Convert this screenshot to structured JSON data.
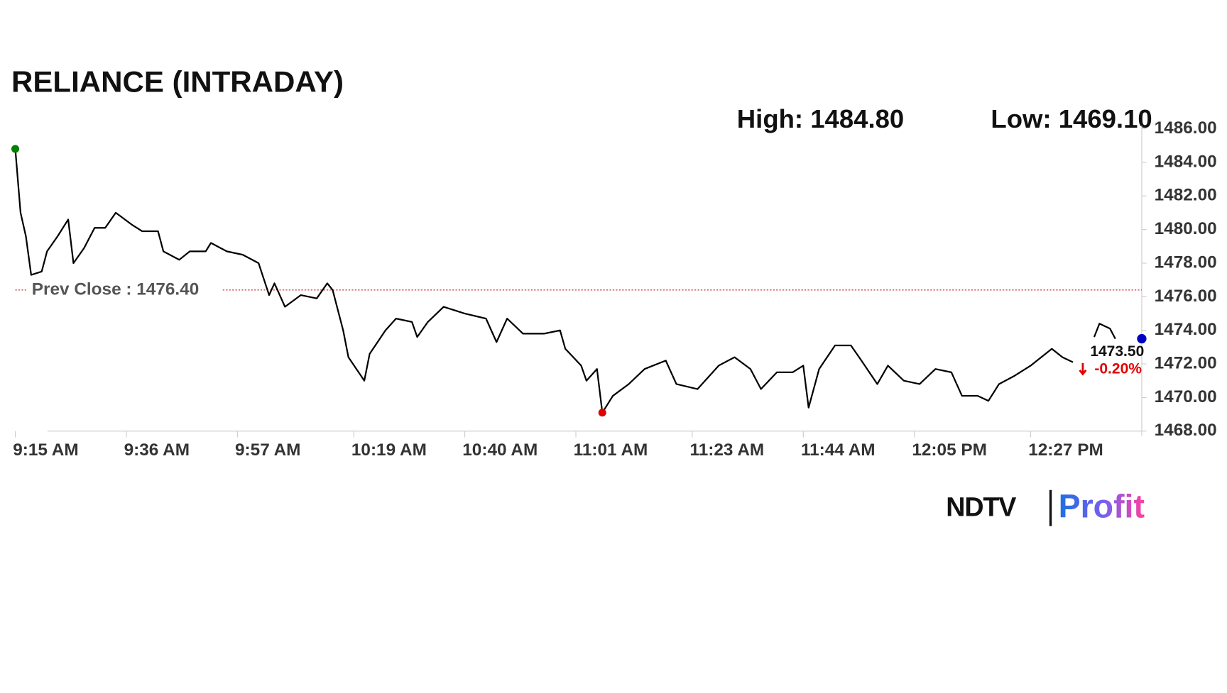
{
  "chart_data": {
    "type": "line",
    "title": "RELIANCE (INTRADAY)",
    "color": "#000000",
    "x": [
      "9:15 AM",
      "9:16 AM",
      "9:17 AM",
      "9:18 AM",
      "9:20 AM",
      "9:21 AM",
      "9:23 AM",
      "9:25 AM",
      "9:26 AM",
      "9:28 AM",
      "9:30 AM",
      "9:32 AM",
      "9:34 AM",
      "9:37 AM",
      "9:39 AM",
      "9:42 AM",
      "9:43 AM",
      "9:46 AM",
      "9:48 AM",
      "9:51 AM",
      "9:52 AM",
      "9:55 AM",
      "9:58 AM",
      "10:01 AM",
      "10:03 AM",
      "10:04 AM",
      "10:06 AM",
      "10:09 AM",
      "10:12 AM",
      "10:14 AM",
      "10:15 AM",
      "10:17 AM",
      "10:18 AM",
      "10:21 AM",
      "10:22 AM",
      "10:25 AM",
      "10:27 AM",
      "10:30 AM",
      "10:31 AM",
      "10:33 AM",
      "10:36 AM",
      "10:40 AM",
      "10:44 AM",
      "10:46 AM",
      "10:48 AM",
      "10:51 AM",
      "10:55 AM",
      "10:58 AM",
      "10:59 AM",
      "11:02 AM",
      "11:03 AM",
      "11:05 AM",
      "11:06 AM",
      "11:08 AM",
      "11:11 AM",
      "11:14 AM",
      "11:18 AM",
      "11:20 AM",
      "11:24 AM",
      "11:28 AM",
      "11:31 AM",
      "11:34 AM",
      "11:36 AM",
      "11:39 AM",
      "11:42 AM",
      "11:44 AM",
      "11:45 AM",
      "11:47 AM",
      "11:50 AM",
      "11:53 AM",
      "11:55 AM",
      "11:58 AM",
      "12:00 PM",
      "12:03 PM",
      "12:06 PM",
      "12:09 PM",
      "12:12 PM",
      "12:14 PM",
      "12:17 PM",
      "12:19 PM",
      "12:21 PM",
      "12:24 PM",
      "12:27 PM",
      "12:31 PM",
      "12:33 PM",
      "12:35 PM",
      "12:38 PM",
      "12:39 PM",
      "12:40 PM",
      "12:42 PM",
      "12:43 PM",
      "12:45 PM",
      "12:48 PM"
    ],
    "values": [
      1484.8,
      1481.0,
      1479.6,
      1477.3,
      1477.5,
      1478.7,
      1479.6,
      1480.6,
      1478.0,
      1478.9,
      1480.1,
      1480.1,
      1481.0,
      1480.3,
      1479.9,
      1479.9,
      1478.7,
      1478.2,
      1478.7,
      1478.7,
      1479.2,
      1478.7,
      1478.5,
      1478.0,
      1476.1,
      1476.8,
      1475.4,
      1476.1,
      1475.9,
      1476.8,
      1476.4,
      1474.0,
      1472.4,
      1471.0,
      1472.6,
      1474.0,
      1474.7,
      1474.5,
      1473.6,
      1474.5,
      1475.4,
      1475.0,
      1474.7,
      1473.3,
      1474.7,
      1473.8,
      1473.8,
      1474.0,
      1472.9,
      1471.9,
      1471.0,
      1471.7,
      1469.1,
      1470.1,
      1470.8,
      1471.7,
      1472.2,
      1470.8,
      1470.5,
      1471.9,
      1472.4,
      1471.7,
      1470.5,
      1471.5,
      1471.5,
      1471.9,
      1469.4,
      1471.7,
      1473.1,
      1473.1,
      1472.2,
      1470.8,
      1471.9,
      1471.0,
      1470.8,
      1471.7,
      1471.5,
      1470.1,
      1470.1,
      1469.8,
      1470.8,
      1471.3,
      1471.9,
      1472.9,
      1472.4,
      1472.1,
      null,
      1473.6,
      1474.4,
      1474.1,
      1473.5,
      null,
      1473.5
    ],
    "xlim": [
      "9:15 AM",
      "12:48 PM"
    ],
    "xticks": [
      "9:15 AM",
      "9:36 AM",
      "9:57 AM",
      "10:19 AM",
      "10:40 AM",
      "11:01 AM",
      "11:23 AM",
      "11:44 AM",
      "12:05 PM",
      "12:27 PM"
    ],
    "ylim": [
      1468,
      1486
    ],
    "yticks": [
      {
        "value": 1468,
        "label": "1468.00"
      },
      {
        "value": 1470,
        "label": "1470.00"
      },
      {
        "value": 1472,
        "label": "1472.00"
      },
      {
        "value": 1474,
        "label": "1474.00"
      },
      {
        "value": 1476,
        "label": "1476.00"
      },
      {
        "value": 1478,
        "label": "1478.00"
      },
      {
        "value": 1480,
        "label": "1480.00"
      },
      {
        "value": 1482,
        "label": "1482.00"
      },
      {
        "value": 1484,
        "label": "1484.00"
      },
      {
        "value": 1486,
        "label": "1486.00"
      }
    ],
    "high": {
      "value": 1484.8,
      "label": "High: 1484.80",
      "color": "#008000"
    },
    "low": {
      "value": 1469.1,
      "label": "Low: 1469.10",
      "color": "#e00000"
    },
    "prev_close": {
      "value": 1476.4,
      "label": "Prev Close : 1476.40",
      "color": "#c00000"
    },
    "last": {
      "value": 1473.5,
      "label": "1473.50",
      "change": -0.2,
      "change_label": "-0.20%",
      "color": "#0000c0"
    },
    "logo": {
      "left": "NDTV",
      "right": "Profit"
    }
  }
}
